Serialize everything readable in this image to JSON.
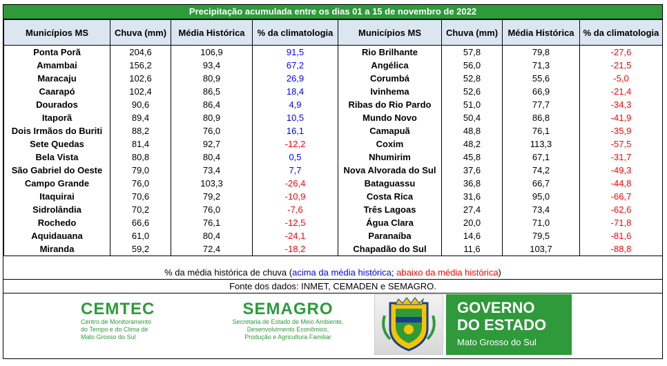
{
  "title": "Precipitação acumulada entre os dias 01 a 15 de novembro de 2022",
  "headers": {
    "municipio": "Municípios MS",
    "chuva": "Chuva (mm)",
    "media": "Média Histórica",
    "pct": "% da climatologia"
  },
  "left": [
    {
      "name": "Ponta Porã",
      "chuva": "204,6",
      "media": "106,9",
      "pct": "91,5"
    },
    {
      "name": "Amambai",
      "chuva": "156,2",
      "media": "93,4",
      "pct": "67,2"
    },
    {
      "name": "Maracaju",
      "chuva": "102,6",
      "media": "80,9",
      "pct": "26,9"
    },
    {
      "name": "Caarapó",
      "chuva": "102,4",
      "media": "86,5",
      "pct": "18,4"
    },
    {
      "name": "Dourados",
      "chuva": "90,6",
      "media": "86,4",
      "pct": "4,9"
    },
    {
      "name": "Itaporã",
      "chuva": "89,4",
      "media": "80,9",
      "pct": "10,5"
    },
    {
      "name": "Dois Irmãos do Buriti",
      "chuva": "88,2",
      "media": "76,0",
      "pct": "16,1"
    },
    {
      "name": "Sete Quedas",
      "chuva": "81,4",
      "media": "92,7",
      "pct": "-12,2"
    },
    {
      "name": "Bela Vista",
      "chuva": "80,8",
      "media": "80,4",
      "pct": "0,5"
    },
    {
      "name": "São Gabriel do Oeste",
      "chuva": "79,0",
      "media": "73,4",
      "pct": "7,7"
    },
    {
      "name": "Campo Grande",
      "chuva": "76,0",
      "media": "103,3",
      "pct": "-26,4"
    },
    {
      "name": "Itaquirai",
      "chuva": "70,6",
      "media": "79,2",
      "pct": "-10,9"
    },
    {
      "name": "Sidrolândia",
      "chuva": "70,2",
      "media": "76,0",
      "pct": "-7,6"
    },
    {
      "name": "Rochedo",
      "chuva": "66,6",
      "media": "76,1",
      "pct": "-12,5"
    },
    {
      "name": "Aquidauana",
      "chuva": "61,0",
      "media": "80,4",
      "pct": "-24,1"
    },
    {
      "name": "Miranda",
      "chuva": "59,2",
      "media": "72,4",
      "pct": "-18,2"
    }
  ],
  "right": [
    {
      "name": "Rio Brilhante",
      "chuva": "57,8",
      "media": "79,8",
      "pct": "-27,6"
    },
    {
      "name": "Angélica",
      "chuva": "56,0",
      "media": "71,3",
      "pct": "-21,5"
    },
    {
      "name": "Corumbá",
      "chuva": "52,8",
      "media": "55,6",
      "pct": "-5,0"
    },
    {
      "name": "Ivinhema",
      "chuva": "52,6",
      "media": "66,9",
      "pct": "-21,4"
    },
    {
      "name": "Ribas do Rio Pardo",
      "chuva": "51,0",
      "media": "77,7",
      "pct": "-34,3"
    },
    {
      "name": "Mundo Novo",
      "chuva": "50,4",
      "media": "86,8",
      "pct": "-41,9"
    },
    {
      "name": "Camapuã",
      "chuva": "48,8",
      "media": "76,1",
      "pct": "-35,9"
    },
    {
      "name": "Coxim",
      "chuva": "48,2",
      "media": "113,3",
      "pct": "-57,5"
    },
    {
      "name": "Nhumirim",
      "chuva": "45,8",
      "media": "67,1",
      "pct": "-31,7"
    },
    {
      "name": "Nova Alvorada do Sul",
      "chuva": "37,6",
      "media": "74,2",
      "pct": "-49,3"
    },
    {
      "name": "Bataguassu",
      "chuva": "36,8",
      "media": "66,7",
      "pct": "-44,8"
    },
    {
      "name": "Costa Rica",
      "chuva": "31,6",
      "media": "95,0",
      "pct": "-66,7"
    },
    {
      "name": "Três Lagoas",
      "chuva": "27,4",
      "media": "73,4",
      "pct": "-62,6"
    },
    {
      "name": "Água Clara",
      "chuva": "20,0",
      "media": "71,0",
      "pct": "-71,8"
    },
    {
      "name": "Paranaíba",
      "chuva": "14,6",
      "media": "79,5",
      "pct": "-81,6"
    },
    {
      "name": "Chapadão do Sul",
      "chuva": "11,6",
      "media": "103,7",
      "pct": "-88,8"
    }
  ],
  "note": {
    "prefix": "% da média histórica de chuva (",
    "above": "acima da média histórica",
    "sep": "; ",
    "below": "abaixo da média histórica",
    "suffix": ")"
  },
  "source": "Fonte dos dados: INMET, CEMADEN e SEMAGRO.",
  "colors": {
    "green": "#2e9a3a",
    "header_bg": "#dce6f1",
    "above": "#0000ff",
    "below": "#ff0000"
  },
  "logos": {
    "cemtec": {
      "name": "CEMTEC",
      "lines": [
        "Centro de Monitoramento",
        "do Tempo e do Clima de",
        "Mato Grosso do Sul"
      ]
    },
    "semagro": {
      "name": "SEMAGRO",
      "lines": [
        "Secretaria de Estado de Meio Ambiente,",
        "Desenvolvimento Econômico,",
        "Produção e Agricultura Familiar"
      ]
    },
    "governo": {
      "line1": "GOVERNO",
      "line2": "DO ESTADO",
      "line3": "Mato Grosso do Sul",
      "crest_icon": "state-coat-of-arms-icon"
    }
  }
}
